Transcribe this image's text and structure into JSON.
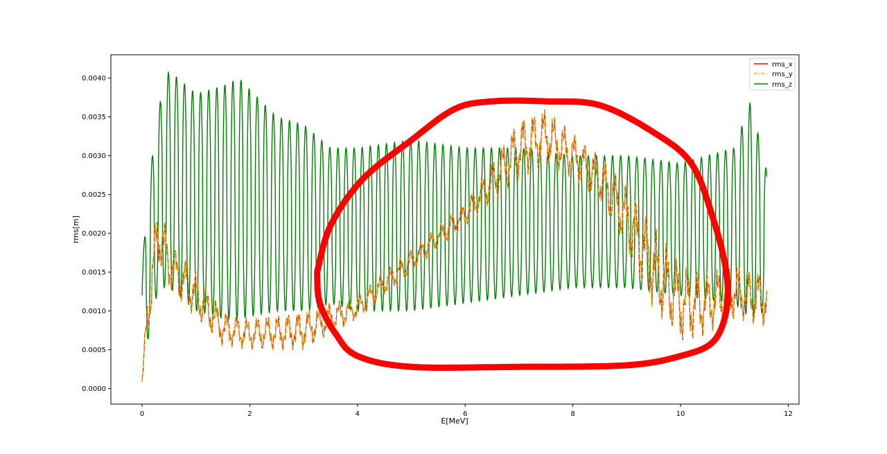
{
  "chart_data": {
    "type": "line",
    "title": "",
    "xlabel": "E[MeV]",
    "ylabel": "rms[m]",
    "xlim": [
      -0.58,
      12.2
    ],
    "ylim": [
      -0.0002,
      0.0043
    ],
    "x_ticks": [
      0,
      2,
      4,
      6,
      8,
      10,
      12
    ],
    "x_tick_labels": [
      "0",
      "2",
      "4",
      "6",
      "8",
      "10",
      "12"
    ],
    "y_ticks": [
      0.0,
      0.0005,
      0.001,
      0.0015,
      0.002,
      0.0025,
      0.003,
      0.0035,
      0.004
    ],
    "y_tick_labels": [
      "0.0000",
      "0.0005",
      "0.0010",
      "0.0015",
      "0.0020",
      "0.0025",
      "0.0030",
      "0.0035",
      "0.0040"
    ],
    "legend_position": "top-right",
    "grid": false,
    "x_range_of_series": [
      0.0,
      11.6
    ],
    "series": [
      {
        "name": "rms_x",
        "color": "#ff0000",
        "style": "solid",
        "envelope_points": [
          {
            "x": 0.0,
            "low": 5e-05,
            "high": 0.0001
          },
          {
            "x": 0.1,
            "low": 0.0006,
            "high": 0.0013
          },
          {
            "x": 0.3,
            "low": 0.0016,
            "high": 0.0025
          },
          {
            "x": 0.5,
            "low": 0.0013,
            "high": 0.0019
          },
          {
            "x": 1.0,
            "low": 0.0009,
            "high": 0.0015
          },
          {
            "x": 1.5,
            "low": 0.00055,
            "high": 0.001
          },
          {
            "x": 2.0,
            "low": 0.0005,
            "high": 0.0009
          },
          {
            "x": 2.5,
            "low": 0.0005,
            "high": 0.00095
          },
          {
            "x": 3.0,
            "low": 0.0005,
            "high": 0.001
          },
          {
            "x": 3.5,
            "low": 0.0007,
            "high": 0.0011
          },
          {
            "x": 4.0,
            "low": 0.0009,
            "high": 0.0012
          },
          {
            "x": 4.5,
            "low": 0.0012,
            "high": 0.0015
          },
          {
            "x": 5.0,
            "low": 0.0015,
            "high": 0.0018
          },
          {
            "x": 5.5,
            "low": 0.0018,
            "high": 0.0021
          },
          {
            "x": 6.0,
            "low": 0.0021,
            "high": 0.0024
          },
          {
            "x": 6.5,
            "low": 0.0024,
            "high": 0.0029
          },
          {
            "x": 7.0,
            "low": 0.0027,
            "high": 0.0035
          },
          {
            "x": 7.5,
            "low": 0.0029,
            "high": 0.0036
          },
          {
            "x": 8.0,
            "low": 0.0027,
            "high": 0.0033
          },
          {
            "x": 8.5,
            "low": 0.0024,
            "high": 0.003
          },
          {
            "x": 9.0,
            "low": 0.0018,
            "high": 0.0026
          },
          {
            "x": 9.5,
            "low": 0.001,
            "high": 0.0021
          },
          {
            "x": 10.0,
            "low": 0.0006,
            "high": 0.0016
          },
          {
            "x": 10.5,
            "low": 0.0007,
            "high": 0.0015
          },
          {
            "x": 11.0,
            "low": 0.0009,
            "high": 0.0016
          },
          {
            "x": 11.6,
            "low": 0.0008,
            "high": 0.0015
          }
        ]
      },
      {
        "name": "rms_y",
        "color": "#bfbf00",
        "style": "dash-dot",
        "note_values": "tracks rms_x closely"
      },
      {
        "name": "rms_z",
        "color": "#008000",
        "style": "solid",
        "oscillation_period_x": 0.15,
        "envelope_points": [
          {
            "x": 0.0,
            "low": 0.0009,
            "high": 0.0015
          },
          {
            "x": 0.1,
            "low": 0.0006,
            "high": 0.0025
          },
          {
            "x": 0.3,
            "low": 0.0013,
            "high": 0.0036
          },
          {
            "x": 0.5,
            "low": 0.0013,
            "high": 0.0041
          },
          {
            "x": 1.0,
            "low": 0.001,
            "high": 0.0038
          },
          {
            "x": 1.5,
            "low": 0.0009,
            "high": 0.0039
          },
          {
            "x": 1.8,
            "low": 0.0009,
            "high": 0.004
          },
          {
            "x": 2.5,
            "low": 0.001,
            "high": 0.0035
          },
          {
            "x": 3.0,
            "low": 0.001,
            "high": 0.0034
          },
          {
            "x": 3.5,
            "low": 0.0011,
            "high": 0.0031
          },
          {
            "x": 4.0,
            "low": 0.001,
            "high": 0.0031
          },
          {
            "x": 5.0,
            "low": 0.001,
            "high": 0.0032
          },
          {
            "x": 6.0,
            "low": 0.0011,
            "high": 0.0031
          },
          {
            "x": 7.0,
            "low": 0.0012,
            "high": 0.0031
          },
          {
            "x": 8.0,
            "low": 0.0013,
            "high": 0.003
          },
          {
            "x": 9.0,
            "low": 0.0013,
            "high": 0.003
          },
          {
            "x": 10.0,
            "low": 0.0012,
            "high": 0.0029
          },
          {
            "x": 11.0,
            "low": 0.0011,
            "high": 0.0031
          },
          {
            "x": 11.3,
            "low": 0.0009,
            "high": 0.0037
          },
          {
            "x": 11.6,
            "low": 0.001,
            "high": 0.0028
          }
        ]
      }
    ],
    "annotation": {
      "type": "hand-drawn-closed-loop",
      "color": "#ff0000",
      "outline": [
        [
          3.25,
          0.0015
        ],
        [
          3.5,
          0.0021
        ],
        [
          4.1,
          0.0027
        ],
        [
          5.0,
          0.0032
        ],
        [
          5.8,
          0.0036
        ],
        [
          6.5,
          0.0037
        ],
        [
          7.5,
          0.0037
        ],
        [
          8.5,
          0.00365
        ],
        [
          9.5,
          0.0033
        ],
        [
          10.2,
          0.0029
        ],
        [
          10.6,
          0.0022
        ],
        [
          10.85,
          0.0015
        ],
        [
          10.85,
          0.001
        ],
        [
          10.6,
          0.0006
        ],
        [
          10.0,
          0.00042
        ],
        [
          9.0,
          0.0003
        ],
        [
          7.0,
          0.00028
        ],
        [
          5.0,
          0.00028
        ],
        [
          4.0,
          0.00042
        ],
        [
          3.6,
          0.0007
        ],
        [
          3.3,
          0.0011
        ],
        [
          3.25,
          0.0015
        ]
      ]
    }
  }
}
